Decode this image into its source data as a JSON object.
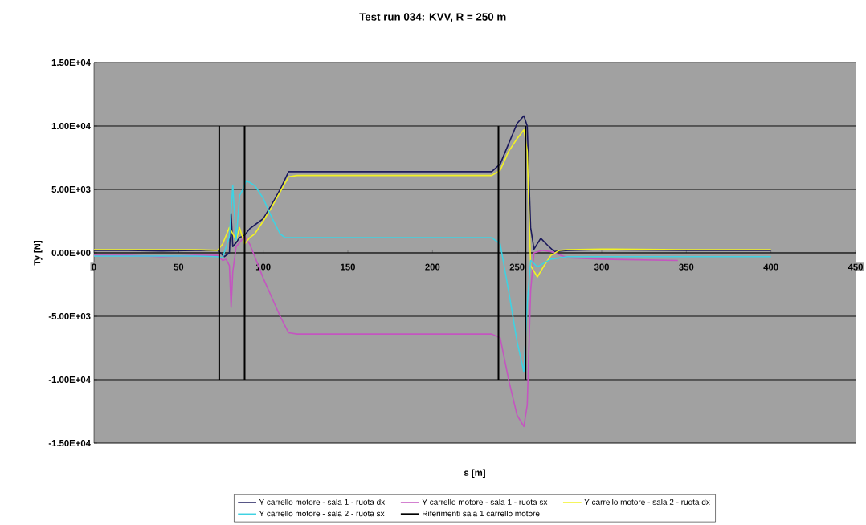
{
  "chart_data": {
    "type": "line",
    "title": "Test run 034: KVV, R = 250 m",
    "xlabel": "s [m]",
    "ylabel": "Ty [N]",
    "xlim": [
      0,
      450
    ],
    "xticks": [
      0,
      50,
      100,
      150,
      200,
      250,
      300,
      350,
      400,
      450
    ],
    "ylim": [
      -15000,
      15000
    ],
    "yticks": [
      {
        "value": -15000,
        "label": "-1.50E+04"
      },
      {
        "value": -10000,
        "label": "-1.00E+04"
      },
      {
        "value": -5000,
        "label": "-5.00E+03"
      },
      {
        "value": 0,
        "label": "0.00E+00"
      },
      {
        "value": 5000,
        "label": "5.00E+03"
      },
      {
        "value": 10000,
        "label": "1.00E+04"
      },
      {
        "value": 15000,
        "label": "1.50E+04"
      }
    ],
    "grid": "y",
    "legend": "bottom",
    "series": [
      {
        "name": "Y carrello motore - sala 1 - ruota dx",
        "color": "#1c1a5c",
        "x": [
          0,
          20,
          40,
          60,
          73,
          77,
          80,
          81,
          82,
          84,
          86,
          89,
          92,
          95,
          100,
          105,
          110,
          115,
          120,
          150,
          200,
          235,
          240,
          245,
          250,
          254,
          256,
          258,
          260,
          264,
          268,
          272,
          280,
          300,
          350,
          400
        ],
        "values": [
          200,
          200,
          150,
          200,
          200,
          -300,
          0,
          3100,
          500,
          800,
          1200,
          1400,
          1900,
          2200,
          2700,
          3800,
          5000,
          6400,
          6400,
          6400,
          6400,
          6400,
          7000,
          8600,
          10200,
          10800,
          10000,
          2000,
          300,
          1150,
          600,
          100,
          200,
          250,
          200,
          200
        ]
      },
      {
        "name": "Y carrello motore - sala 1 - ruota sx",
        "color": "#c455c0",
        "x": [
          0,
          20,
          40,
          60,
          73,
          76,
          78,
          80,
          81,
          82,
          84,
          86,
          89,
          92,
          95,
          100,
          105,
          110,
          115,
          120,
          150,
          200,
          235,
          240,
          245,
          250,
          254,
          256,
          258,
          260,
          265,
          270,
          280,
          300,
          345
        ],
        "values": [
          -200,
          -200,
          -300,
          -200,
          -200,
          -600,
          -500,
          -1000,
          -4300,
          -1500,
          500,
          800,
          1300,
          700,
          -300,
          -2000,
          -3500,
          -5000,
          -6300,
          -6400,
          -6400,
          -6400,
          -6400,
          -6700,
          -10000,
          -12800,
          -13700,
          -12000,
          -3000,
          0,
          200,
          100,
          -400,
          -500,
          -600
        ]
      },
      {
        "name": "Y carrello motore - sala 2 - ruota dx",
        "color": "#f2f224",
        "x": [
          0,
          20,
          40,
          60,
          73,
          76,
          80,
          82,
          84,
          86,
          89,
          92,
          95,
          100,
          105,
          110,
          115,
          120,
          150,
          200,
          235,
          240,
          245,
          250,
          254,
          256,
          258,
          262,
          266,
          270,
          275,
          280,
          300,
          350,
          400
        ],
        "values": [
          250,
          250,
          250,
          250,
          200,
          700,
          2000,
          1500,
          1000,
          2000,
          700,
          1200,
          1500,
          2500,
          3600,
          4800,
          6000,
          6100,
          6100,
          6100,
          6100,
          6500,
          8000,
          9000,
          9700,
          8000,
          -1000,
          -1900,
          -1000,
          -200,
          200,
          250,
          300,
          250,
          250
        ]
      },
      {
        "name": "Y carrello motore - sala 2 - ruota sx",
        "color": "#3fd2e2",
        "x": [
          0,
          20,
          40,
          60,
          73,
          76,
          80,
          82,
          83,
          84,
          86,
          88,
          90,
          95,
          100,
          105,
          110,
          113,
          120,
          150,
          200,
          235,
          240,
          245,
          250,
          254,
          256,
          258,
          262,
          266,
          270,
          280,
          300,
          350,
          400
        ],
        "values": [
          -250,
          -250,
          -250,
          -250,
          -300,
          -400,
          1300,
          5300,
          3000,
          1000,
          4500,
          5000,
          5700,
          5300,
          4300,
          2800,
          1500,
          1200,
          1200,
          1200,
          1200,
          1200,
          700,
          -3000,
          -7000,
          -9400,
          -4000,
          -600,
          -1100,
          -800,
          -500,
          -300,
          -300,
          -300,
          -300
        ]
      },
      {
        "name": "Riferimenti sala 1 carrello motore",
        "color": "#000000",
        "x": [
          74,
          74,
          null,
          89,
          89,
          null,
          239,
          239,
          null,
          255,
          255
        ],
        "values": [
          -10000,
          10000,
          null,
          -10000,
          10000,
          null,
          -10000,
          10000,
          null,
          -10000,
          10000
        ]
      }
    ]
  }
}
